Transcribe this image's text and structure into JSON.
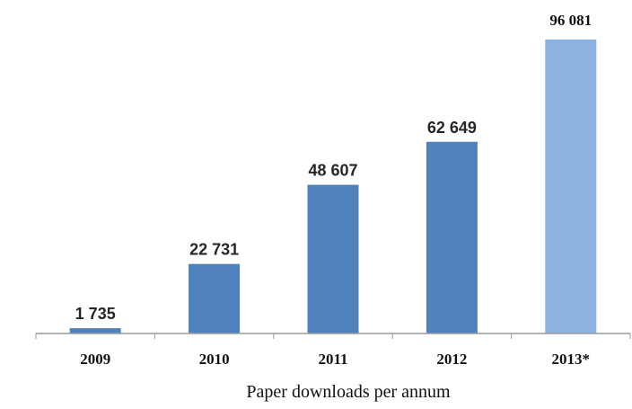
{
  "chart_data": {
    "type": "bar",
    "title": "",
    "xlabel": "Paper downloads per annum",
    "ylabel": "",
    "categories": [
      "2009",
      "2010",
      "2011",
      "2012",
      "2013*"
    ],
    "values": [
      1735,
      22731,
      48607,
      62649,
      96081
    ],
    "value_labels": [
      "1 735",
      "22 731",
      "48 607",
      "62 649",
      "96 081"
    ],
    "ylim": [
      0,
      96081
    ],
    "grid": false,
    "legend": "none",
    "colors": {
      "bar": "#4f81bd",
      "bar_highlight": "#8db3e2",
      "axis": "#9a9a9a"
    }
  }
}
